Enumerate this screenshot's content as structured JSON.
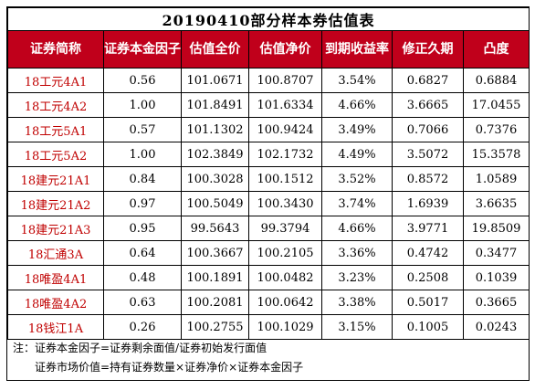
{
  "title": "20190410部分样本券估值表",
  "columns": [
    "证券简称",
    "证券本金因子",
    "估值全价",
    "估值净价",
    "到期收益率",
    "修正久期",
    "凸度"
  ],
  "rows": [
    [
      "18工元4A1",
      "0.56",
      "101.0671",
      "100.8707",
      "3.54%",
      "0.6827",
      "0.6884"
    ],
    [
      "18工元4A2",
      "1.00",
      "101.8491",
      "101.6334",
      "4.66%",
      "3.6665",
      "17.0455"
    ],
    [
      "18工元5A1",
      "0.57",
      "101.1302",
      "100.9424",
      "3.49%",
      "0.7066",
      "0.7376"
    ],
    [
      "18工元5A2",
      "1.00",
      "102.3849",
      "102.1732",
      "4.49%",
      "3.5072",
      "15.3578"
    ],
    [
      "18建元21A1",
      "0.84",
      "100.3028",
      "100.1512",
      "3.52%",
      "0.8572",
      "1.0589"
    ],
    [
      "18建元21A2",
      "0.97",
      "100.5049",
      "100.3430",
      "3.74%",
      "1.6939",
      "3.6635"
    ],
    [
      "18建元21A3",
      "0.95",
      "99.5643",
      "99.3794",
      "4.66%",
      "3.9771",
      "19.8509"
    ],
    [
      "18汇通3A",
      "0.64",
      "100.3667",
      "100.2105",
      "3.36%",
      "0.4742",
      "0.3477"
    ],
    [
      "18唯盈4A1",
      "0.48",
      "100.1891",
      "100.0482",
      "3.23%",
      "0.2508",
      "0.1039"
    ],
    [
      "18唯盈4A2",
      "0.63",
      "100.2081",
      "100.0642",
      "3.38%",
      "0.5017",
      "0.3665"
    ],
    [
      "18钱江1A",
      "0.26",
      "100.2755",
      "100.1029",
      "3.15%",
      "0.1005",
      "0.0243"
    ]
  ],
  "notes": [
    "注：证券本金因子=证券剩余面值/证券初始发行面值",
    "证券市场价值=持有证券数量×证券净价×证券本金因子"
  ],
  "colors": {
    "header_bg": "#c0001b",
    "header_text": "#ffffff",
    "name_text": "#c00000"
  },
  "chart_data": {
    "type": "table",
    "title": "20190410部分样本券估值表",
    "columns": [
      "证券简称",
      "证券本金因子",
      "估值全价",
      "估值净价",
      "到期收益率",
      "修正久期",
      "凸度"
    ],
    "rows": [
      [
        "18工元4A1",
        0.56,
        101.0671,
        100.8707,
        "3.54%",
        0.6827,
        0.6884
      ],
      [
        "18工元4A2",
        1.0,
        101.8491,
        101.6334,
        "4.66%",
        3.6665,
        17.0455
      ],
      [
        "18工元5A1",
        0.57,
        101.1302,
        100.9424,
        "3.49%",
        0.7066,
        0.7376
      ],
      [
        "18工元5A2",
        1.0,
        102.3849,
        102.1732,
        "4.49%",
        3.5072,
        15.3578
      ],
      [
        "18建元21A1",
        0.84,
        100.3028,
        100.1512,
        "3.52%",
        0.8572,
        1.0589
      ],
      [
        "18建元21A2",
        0.97,
        100.5049,
        100.343,
        "3.74%",
        1.6939,
        3.6635
      ],
      [
        "18建元21A3",
        0.95,
        99.5643,
        99.3794,
        "4.66%",
        3.9771,
        19.8509
      ],
      [
        "18汇通3A",
        0.64,
        100.3667,
        100.2105,
        "3.36%",
        0.4742,
        0.3477
      ],
      [
        "18唯盈4A1",
        0.48,
        100.1891,
        100.0482,
        "3.23%",
        0.2508,
        0.1039
      ],
      [
        "18唯盈4A2",
        0.63,
        100.2081,
        100.0642,
        "3.38%",
        0.5017,
        0.3665
      ],
      [
        "18钱江1A",
        0.26,
        100.2755,
        100.1029,
        "3.15%",
        0.1005,
        0.0243
      ]
    ]
  }
}
